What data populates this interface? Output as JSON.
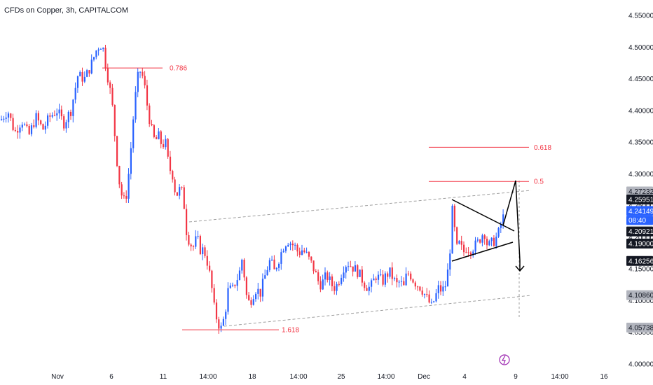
{
  "header": {
    "title": "CFDs on Copper, 3h, CAPITALCOM"
  },
  "colors": {
    "up": "#2962ff",
    "down": "#f23645",
    "fib": "#f23645",
    "channel": "#9e9e9e",
    "text": "#131722"
  },
  "chart_data": {
    "type": "candlestick",
    "ylim": [
      4.0,
      4.575
    ],
    "y_ticks": [
      "4.55000",
      "4.50000",
      "4.45000",
      "4.40000",
      "4.35000",
      "4.30000",
      "4.25000",
      "4.20000",
      "4.15000",
      "4.10000",
      "4.05000",
      "4.00000"
    ],
    "x_ticks": [
      "Nov",
      "6",
      "11",
      "14:00",
      "18",
      "14:00",
      "25",
      "14:00",
      "Dec",
      "4",
      "9",
      "14:00",
      "16"
    ],
    "price_path": [
      [
        0,
        4.385
      ],
      [
        10,
        4.4
      ],
      [
        20,
        4.365
      ],
      [
        30,
        4.385
      ],
      [
        40,
        4.36
      ],
      [
        50,
        4.39
      ],
      [
        60,
        4.37
      ],
      [
        70,
        4.39
      ],
      [
        80,
        4.4
      ],
      [
        90,
        4.38
      ],
      [
        100,
        4.4
      ],
      [
        110,
        4.455
      ],
      [
        120,
        4.45
      ],
      [
        130,
        4.475
      ],
      [
        138,
        4.5
      ],
      [
        145,
        4.505
      ],
      [
        150,
        4.47
      ],
      [
        155,
        4.44
      ],
      [
        160,
        4.4
      ],
      [
        165,
        4.33
      ],
      [
        170,
        4.28
      ],
      [
        175,
        4.255
      ],
      [
        180,
        4.27
      ],
      [
        185,
        4.33
      ],
      [
        190,
        4.4
      ],
      [
        195,
        4.45
      ],
      [
        200,
        4.465
      ],
      [
        205,
        4.44
      ],
      [
        210,
        4.4
      ],
      [
        215,
        4.37
      ],
      [
        220,
        4.35
      ],
      [
        225,
        4.36
      ],
      [
        230,
        4.345
      ],
      [
        235,
        4.35
      ],
      [
        240,
        4.31
      ],
      [
        245,
        4.3
      ],
      [
        250,
        4.265
      ],
      [
        255,
        4.275
      ],
      [
        260,
        4.27
      ],
      [
        265,
        4.21
      ],
      [
        270,
        4.19
      ],
      [
        275,
        4.185
      ],
      [
        280,
        4.2
      ],
      [
        285,
        4.18
      ],
      [
        290,
        4.18
      ],
      [
        295,
        4.16
      ],
      [
        300,
        4.13
      ],
      [
        305,
        4.085
      ],
      [
        310,
        4.065
      ],
      [
        315,
        4.055
      ],
      [
        320,
        4.08
      ],
      [
        325,
        4.12
      ],
      [
        330,
        4.115
      ],
      [
        335,
        4.13
      ],
      [
        340,
        4.14
      ],
      [
        345,
        4.17
      ],
      [
        350,
        4.11
      ],
      [
        355,
        4.095
      ],
      [
        360,
        4.11
      ],
      [
        365,
        4.12
      ],
      [
        370,
        4.11
      ],
      [
        375,
        4.13
      ],
      [
        380,
        4.15
      ],
      [
        385,
        4.165
      ],
      [
        390,
        4.145
      ],
      [
        395,
        4.16
      ],
      [
        400,
        4.175
      ],
      [
        405,
        4.19
      ],
      [
        410,
        4.195
      ],
      [
        415,
        4.19
      ],
      [
        420,
        4.185
      ],
      [
        425,
        4.175
      ],
      [
        430,
        4.18
      ],
      [
        435,
        4.175
      ],
      [
        440,
        4.165
      ],
      [
        445,
        4.155
      ],
      [
        450,
        4.14
      ],
      [
        455,
        4.125
      ],
      [
        460,
        4.13
      ],
      [
        465,
        4.14
      ],
      [
        470,
        4.13
      ],
      [
        475,
        4.12
      ],
      [
        480,
        4.125
      ],
      [
        485,
        4.14
      ],
      [
        490,
        4.155
      ],
      [
        495,
        4.16
      ],
      [
        500,
        4.155
      ],
      [
        505,
        4.15
      ],
      [
        510,
        4.145
      ],
      [
        515,
        4.135
      ],
      [
        520,
        4.125
      ],
      [
        525,
        4.12
      ],
      [
        530,
        4.125
      ],
      [
        535,
        4.14
      ],
      [
        540,
        4.135
      ],
      [
        545,
        4.13
      ],
      [
        550,
        4.14
      ],
      [
        555,
        4.145
      ],
      [
        560,
        4.135
      ],
      [
        565,
        4.125
      ],
      [
        570,
        4.13
      ],
      [
        575,
        4.12
      ],
      [
        580,
        4.145
      ],
      [
        585,
        4.14
      ],
      [
        590,
        4.13
      ],
      [
        595,
        4.125
      ],
      [
        600,
        4.12
      ],
      [
        605,
        4.11
      ],
      [
        610,
        4.1
      ],
      [
        615,
        4.09
      ],
      [
        620,
        4.105
      ],
      [
        625,
        4.12
      ],
      [
        630,
        4.115
      ],
      [
        635,
        4.125
      ],
      [
        640,
        4.16
      ],
      [
        645,
        4.25
      ],
      [
        650,
        4.18
      ],
      [
        655,
        4.19
      ],
      [
        660,
        4.175
      ],
      [
        665,
        4.185
      ],
      [
        670,
        4.18
      ],
      [
        675,
        4.185
      ],
      [
        680,
        4.19
      ],
      [
        685,
        4.2
      ],
      [
        690,
        4.21
      ],
      [
        695,
        4.185
      ],
      [
        700,
        4.19
      ],
      [
        705,
        4.195
      ],
      [
        710,
        4.205
      ],
      [
        715,
        4.225
      ],
      [
        720,
        4.24
      ],
      [
        722,
        4.2415
      ]
    ],
    "annotations": {
      "fib_levels": [
        {
          "label": "0.786",
          "price": 4.467
        },
        {
          "label": "0.618",
          "price": 4.342
        },
        {
          "label": "0.5",
          "price": 4.288
        },
        {
          "label": "1.618",
          "price": 4.054
        }
      ],
      "price_badges": [
        {
          "text": "4.27232",
          "price": 4.2723,
          "style": "gray"
        },
        {
          "text": "4.25951",
          "price": 4.2595,
          "style": "black"
        },
        {
          "text": "4.24149",
          "price": 4.2415,
          "style": "blue"
        },
        {
          "text": "08:40",
          "price": 4.2415,
          "style": "blue-sub"
        },
        {
          "text": "4.20921",
          "price": 4.2092,
          "style": "black"
        },
        {
          "text": "4.19000",
          "price": 4.19,
          "style": "black"
        },
        {
          "text": "4.16256",
          "price": 4.1626,
          "style": "black"
        },
        {
          "text": "4.10860",
          "price": 4.1086,
          "style": "gray"
        },
        {
          "text": "4.05738",
          "price": 4.0574,
          "style": "gray"
        }
      ]
    }
  }
}
